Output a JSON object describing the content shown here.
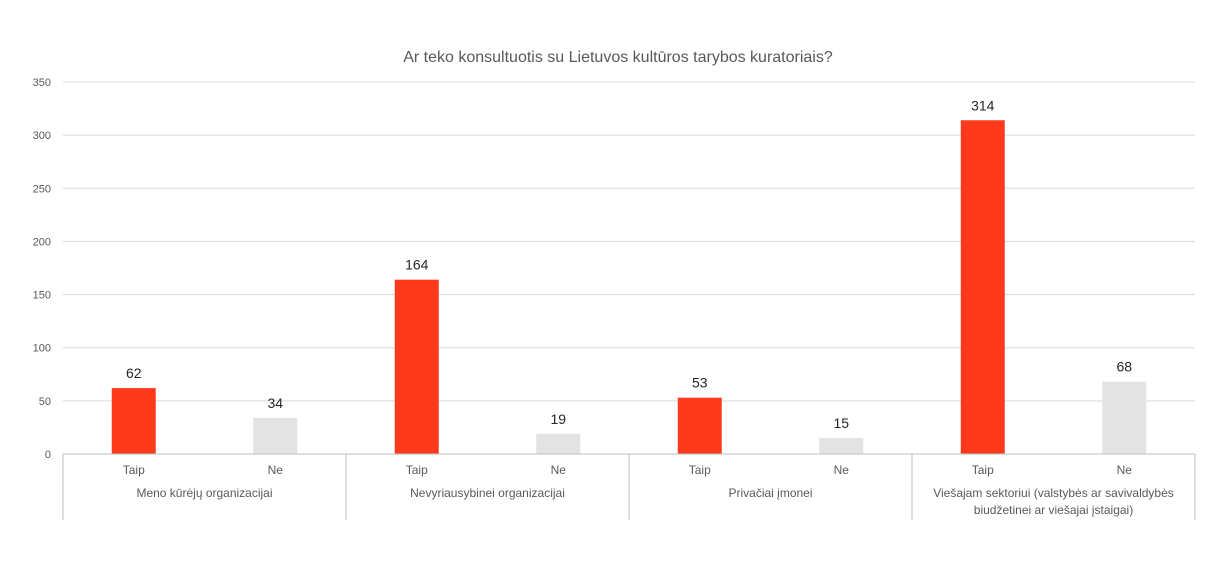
{
  "chart_data": {
    "type": "bar",
    "title": "Ar teko konsultuotis su Lietuvos kultūros tarybos kuratoriais?",
    "xlabel": "",
    "ylabel": "",
    "ylim": [
      0,
      350
    ],
    "yticks": [
      0,
      50,
      100,
      150,
      200,
      250,
      300,
      350
    ],
    "grid": true,
    "legend": "none",
    "groups": [
      {
        "label": [
          "Meno kūrėjų organizacijai"
        ],
        "categories": [
          "Taip",
          "Ne"
        ],
        "values": [
          62,
          34
        ]
      },
      {
        "label": [
          "Nevyriausybinei organizacijai"
        ],
        "categories": [
          "Taip",
          "Ne"
        ],
        "values": [
          164,
          19
        ]
      },
      {
        "label": [
          "Privačiai įmonei"
        ],
        "categories": [
          "Taip",
          "Ne"
        ],
        "values": [
          53,
          15
        ]
      },
      {
        "label": [
          "Viešajam sektoriui (valstybės ar savivaldybės",
          "biudžetinei ar viešajai įstaigai)"
        ],
        "categories": [
          "Taip",
          "Ne"
        ],
        "values": [
          314,
          68
        ]
      }
    ],
    "colors": {
      "Taip": "#ff3a1c",
      "Ne": "#e3e3e3"
    }
  }
}
